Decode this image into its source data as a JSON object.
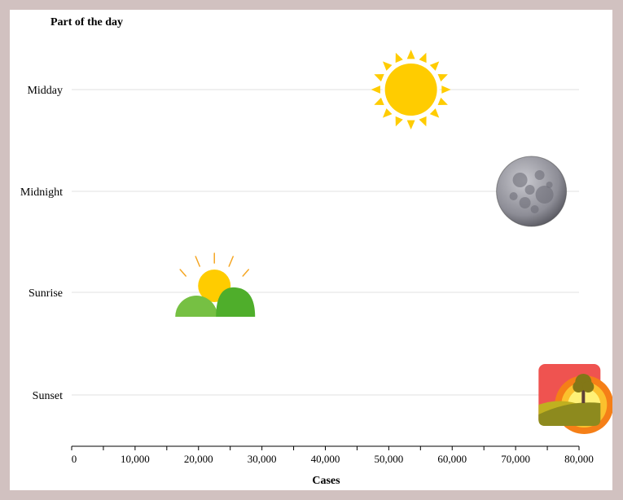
{
  "chart_data": {
    "type": "scatter",
    "title": "",
    "ylabel": "Part of the day",
    "xlabel": "Cases",
    "categories": [
      "Midday",
      "Midnight",
      "Sunrise",
      "Sunset"
    ],
    "x_ticks": [
      0,
      10000,
      20000,
      30000,
      40000,
      50000,
      60000,
      70000,
      80000
    ],
    "x_tick_labels": [
      "0",
      "10,000",
      "20,000",
      "30,000",
      "40,000",
      "50,000",
      "60,000",
      "70,000",
      "80,000"
    ],
    "xlim": [
      0,
      80000
    ],
    "grid": "horizontal",
    "points": [
      {
        "category": "Midday",
        "value": 53500,
        "icon": "sun-icon"
      },
      {
        "category": "Midnight",
        "value": 72500,
        "icon": "moon-icon"
      },
      {
        "category": "Sunrise",
        "value": 22500,
        "icon": "sunrise-icon"
      },
      {
        "category": "Sunset",
        "value": 78500,
        "icon": "sunset-icon"
      }
    ],
    "colors": {
      "page_border": "#d1c1c0",
      "gridline": "#e0e0e0",
      "sun": "#ffcc00",
      "sunrise_hill_left": "#76c043",
      "sunrise_hill_right": "#4fae2b",
      "sunset_bg": "#ef5350"
    }
  }
}
